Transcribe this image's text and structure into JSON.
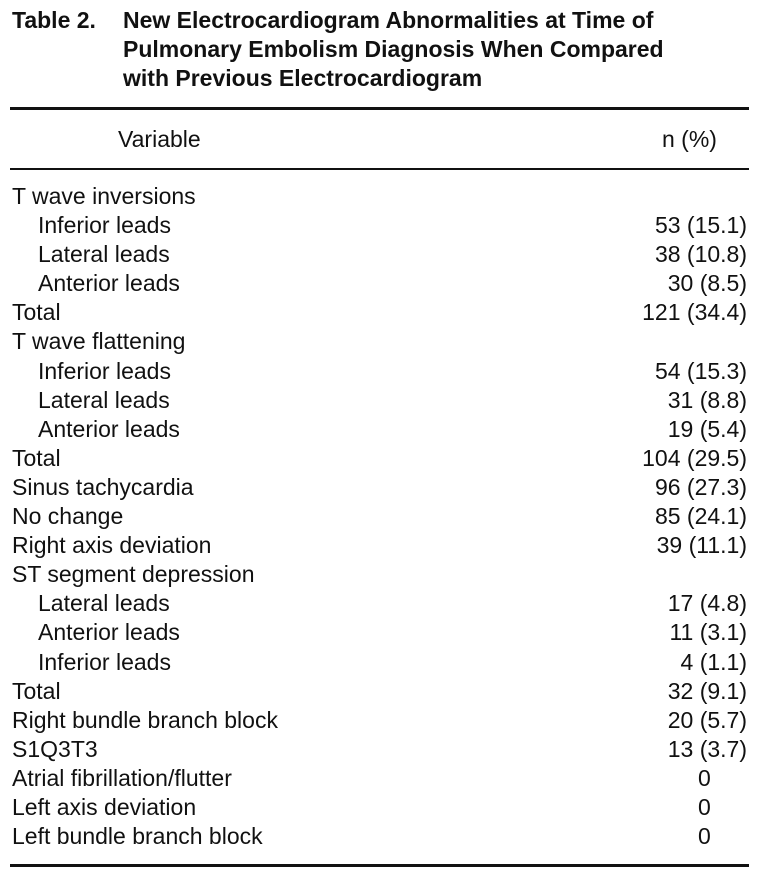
{
  "table": {
    "label": "Table 2.",
    "title": "New Electrocardiogram Abnormalities at Time of\nPulmonary Embolism Diagnosis When Compared\nwith Previous Electrocardiogram",
    "columns": [
      "Variable",
      "n (%)"
    ],
    "rows": [
      {
        "label": "T wave inversions",
        "value": "",
        "indent": false
      },
      {
        "label": "Inferior leads",
        "value": "53 (15.1)",
        "indent": true
      },
      {
        "label": "Lateral leads",
        "value": "38 (10.8)",
        "indent": true
      },
      {
        "label": "Anterior leads",
        "value": "30 (8.5)",
        "indent": true
      },
      {
        "label": "Total",
        "value": "121 (34.4)",
        "indent": false
      },
      {
        "label": "T wave flattening",
        "value": "",
        "indent": false
      },
      {
        "label": "Inferior leads",
        "value": "54 (15.3)",
        "indent": true
      },
      {
        "label": "Lateral leads",
        "value": "31 (8.8)",
        "indent": true
      },
      {
        "label": "Anterior leads",
        "value": "19 (5.4)",
        "indent": true
      },
      {
        "label": "Total",
        "value": "104 (29.5)",
        "indent": false
      },
      {
        "label": "Sinus tachycardia",
        "value": "96 (27.3)",
        "indent": false
      },
      {
        "label": "No change",
        "value": "85 (24.1)",
        "indent": false
      },
      {
        "label": "Right axis deviation",
        "value": "39 (11.1)",
        "indent": false
      },
      {
        "label": "ST segment depression",
        "value": "",
        "indent": false
      },
      {
        "label": "Lateral leads",
        "value": "17 (4.8)",
        "indent": true
      },
      {
        "label": "Anterior leads",
        "value": "11 (3.1)",
        "indent": true
      },
      {
        "label": "Inferior leads",
        "value": "4 (1.1)",
        "indent": true
      },
      {
        "label": "Total",
        "value": "32 (9.1)",
        "indent": false
      },
      {
        "label": "Right bundle branch block",
        "value": "20 (5.7)",
        "indent": false
      },
      {
        "label": "S1Q3T3",
        "value": "13 (3.7)",
        "indent": false
      },
      {
        "label": "Atrial fibrillation/flutter",
        "value": "0",
        "indent": false
      },
      {
        "label": "Left axis deviation",
        "value": "0",
        "indent": false
      },
      {
        "label": "Left bundle branch block",
        "value": "0",
        "indent": false
      }
    ]
  }
}
